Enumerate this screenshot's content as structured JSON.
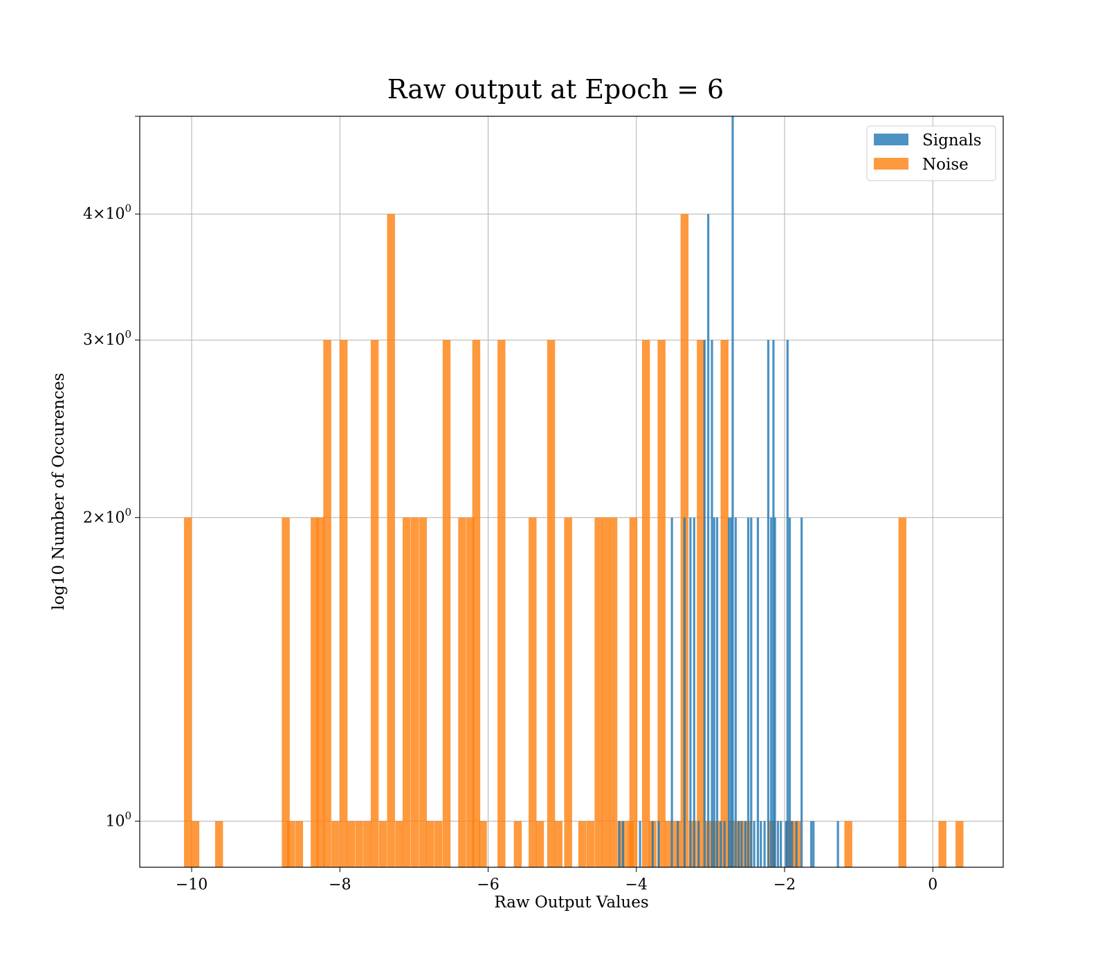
{
  "chart_data": {
    "type": "bar",
    "title": "Raw output at Epoch = 6",
    "xlabel": "Raw Output Values",
    "ylabel": "log10 Number of Occurences",
    "xlim": [
      -10.7,
      0.95
    ],
    "ylim": [
      0.9,
      5.0
    ],
    "yscale": "log",
    "grid": true,
    "legend_position": "top-right",
    "x_ticks": [
      {
        "value": -10,
        "label": "−10"
      },
      {
        "value": -8,
        "label": "−8"
      },
      {
        "value": -6,
        "label": "−6"
      },
      {
        "value": -4,
        "label": "−4"
      },
      {
        "value": -2,
        "label": "−2"
      },
      {
        "value": 0,
        "label": "0"
      }
    ],
    "y_ticks": [
      {
        "value": 1,
        "base": "10",
        "exp": "0",
        "mult": ""
      },
      {
        "value": 2,
        "base": "10",
        "exp": "0",
        "mult": "2×"
      },
      {
        "value": 3,
        "base": "10",
        "exp": "0",
        "mult": "3×"
      },
      {
        "value": 4,
        "base": "10",
        "exp": "0",
        "mult": "4×"
      },
      {
        "value": 5,
        "base": "",
        "exp": "",
        "mult": ""
      }
    ],
    "series": [
      {
        "name": "Signals",
        "color": "#1f77b4",
        "opacity": 0.8,
        "bin_width": 0.03,
        "bins": [
          {
            "x": -4.23,
            "count": 1
          },
          {
            "x": -4.18,
            "count": 1
          },
          {
            "x": -3.95,
            "count": 1
          },
          {
            "x": -3.78,
            "count": 1
          },
          {
            "x": -3.7,
            "count": 1
          },
          {
            "x": -3.52,
            "count": 2
          },
          {
            "x": -3.44,
            "count": 1
          },
          {
            "x": -3.35,
            "count": 2
          },
          {
            "x": -3.27,
            "count": 2
          },
          {
            "x": -3.22,
            "count": 2
          },
          {
            "x": -3.16,
            "count": 1
          },
          {
            "x": -3.08,
            "count": 3
          },
          {
            "x": -3.03,
            "count": 4
          },
          {
            "x": -2.98,
            "count": 3
          },
          {
            "x": -2.95,
            "count": 2
          },
          {
            "x": -2.91,
            "count": 2
          },
          {
            "x": -2.86,
            "count": 1
          },
          {
            "x": -2.81,
            "count": 1
          },
          {
            "x": -2.75,
            "count": 2
          },
          {
            "x": -2.72,
            "count": 2
          },
          {
            "x": -2.7,
            "count": 5
          },
          {
            "x": -2.66,
            "count": 2
          },
          {
            "x": -2.62,
            "count": 1
          },
          {
            "x": -2.58,
            "count": 1
          },
          {
            "x": -2.53,
            "count": 1
          },
          {
            "x": -2.49,
            "count": 2
          },
          {
            "x": -2.45,
            "count": 2
          },
          {
            "x": -2.41,
            "count": 1
          },
          {
            "x": -2.36,
            "count": 2
          },
          {
            "x": -2.32,
            "count": 1
          },
          {
            "x": -2.27,
            "count": 1
          },
          {
            "x": -2.22,
            "count": 3
          },
          {
            "x": -2.18,
            "count": 2
          },
          {
            "x": -2.15,
            "count": 3
          },
          {
            "x": -2.13,
            "count": 2
          },
          {
            "x": -2.09,
            "count": 1
          },
          {
            "x": -2.05,
            "count": 1
          },
          {
            "x": -1.98,
            "count": 1
          },
          {
            "x": -1.96,
            "count": 3
          },
          {
            "x": -1.93,
            "count": 2
          },
          {
            "x": -1.9,
            "count": 1
          },
          {
            "x": -1.84,
            "count": 1
          },
          {
            "x": -1.77,
            "count": 2
          },
          {
            "x": -1.64,
            "count": 1
          },
          {
            "x": -1.61,
            "count": 1
          },
          {
            "x": -1.28,
            "count": 1
          }
        ]
      },
      {
        "name": "Noise",
        "color": "#ff7f0e",
        "opacity": 0.8,
        "bin_width": 0.107,
        "bins": [
          {
            "x": -10.05,
            "count": 2
          },
          {
            "x": -9.95,
            "count": 1
          },
          {
            "x": -9.63,
            "count": 1
          },
          {
            "x": -8.73,
            "count": 2
          },
          {
            "x": -8.66,
            "count": 1
          },
          {
            "x": -8.55,
            "count": 1
          },
          {
            "x": -8.34,
            "count": 2
          },
          {
            "x": -8.26,
            "count": 2
          },
          {
            "x": -8.17,
            "count": 3
          },
          {
            "x": -8.06,
            "count": 1
          },
          {
            "x": -7.95,
            "count": 3
          },
          {
            "x": -7.85,
            "count": 1
          },
          {
            "x": -7.74,
            "count": 1
          },
          {
            "x": -7.63,
            "count": 1
          },
          {
            "x": -7.53,
            "count": 3
          },
          {
            "x": -7.42,
            "count": 1
          },
          {
            "x": -7.31,
            "count": 4
          },
          {
            "x": -7.2,
            "count": 1
          },
          {
            "x": -7.1,
            "count": 2
          },
          {
            "x": -6.99,
            "count": 2
          },
          {
            "x": -6.88,
            "count": 2
          },
          {
            "x": -6.78,
            "count": 1
          },
          {
            "x": -6.67,
            "count": 1
          },
          {
            "x": -6.56,
            "count": 3
          },
          {
            "x": -6.35,
            "count": 2
          },
          {
            "x": -6.24,
            "count": 2
          },
          {
            "x": -6.16,
            "count": 3
          },
          {
            "x": -6.07,
            "count": 1
          },
          {
            "x": -5.82,
            "count": 3
          },
          {
            "x": -5.6,
            "count": 1
          },
          {
            "x": -5.4,
            "count": 2
          },
          {
            "x": -5.3,
            "count": 1
          },
          {
            "x": -5.15,
            "count": 3
          },
          {
            "x": -5.05,
            "count": 1
          },
          {
            "x": -4.92,
            "count": 2
          },
          {
            "x": -4.73,
            "count": 1
          },
          {
            "x": -4.62,
            "count": 1
          },
          {
            "x": -4.51,
            "count": 2
          },
          {
            "x": -4.41,
            "count": 2
          },
          {
            "x": -4.31,
            "count": 2
          },
          {
            "x": -4.2,
            "count": 1
          },
          {
            "x": -4.09,
            "count": 1
          },
          {
            "x": -4.04,
            "count": 2
          },
          {
            "x": -3.87,
            "count": 3
          },
          {
            "x": -3.78,
            "count": 1
          },
          {
            "x": -3.66,
            "count": 3
          },
          {
            "x": -3.56,
            "count": 1
          },
          {
            "x": -3.45,
            "count": 1
          },
          {
            "x": -3.35,
            "count": 4
          },
          {
            "x": -3.24,
            "count": 1
          },
          {
            "x": -3.13,
            "count": 3
          },
          {
            "x": -3.02,
            "count": 1
          },
          {
            "x": -2.92,
            "count": 1
          },
          {
            "x": -2.81,
            "count": 3
          },
          {
            "x": -2.71,
            "count": 1
          },
          {
            "x": -2.6,
            "count": 1
          },
          {
            "x": -2.49,
            "count": 1
          },
          {
            "x": -2.17,
            "count": 1
          },
          {
            "x": -1.93,
            "count": 1
          },
          {
            "x": -1.83,
            "count": 1
          },
          {
            "x": -1.14,
            "count": 1
          },
          {
            "x": -0.41,
            "count": 2
          },
          {
            "x": 0.13,
            "count": 1
          },
          {
            "x": 0.36,
            "count": 1
          }
        ]
      }
    ]
  }
}
